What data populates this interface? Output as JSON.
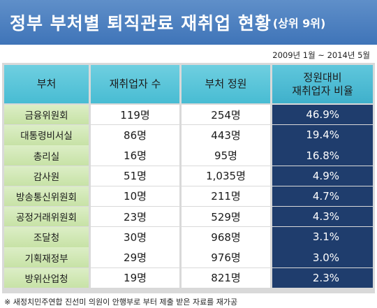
{
  "title": {
    "main": "정부 부처별 퇴직관료 재취업 현황",
    "sub": "(상위 9위)"
  },
  "period": "2009년 1월 ~ 2014년 5월",
  "headers": [
    "부처",
    "재취업자 수",
    "부처 정원",
    "정원대비\n재취업자 비율"
  ],
  "rows": [
    [
      "금융위원회",
      "119명",
      "254명",
      "46.9%"
    ],
    [
      "대통령비서실",
      "86명",
      "443명",
      "19.4%"
    ],
    [
      "총리실",
      "16명",
      "95명",
      "16.8%"
    ],
    [
      "감사원",
      "51명",
      "1,035명",
      "4.9%"
    ],
    [
      "방송통신위원회",
      "10명",
      "211명",
      "4.7%"
    ],
    [
      "공정거래위원회",
      "23명",
      "529명",
      "4.3%"
    ],
    [
      "조달청",
      "30명",
      "968명",
      "3.1%"
    ],
    [
      "기획재정부",
      "29명",
      "976명",
      "3.0%"
    ],
    [
      "방위산업청",
      "19명",
      "821명",
      "2.3%"
    ]
  ],
  "footnote": "※ 새정치민주연합 진선미 의원이 안행부로 부터 제출 받은 자료를 재가공",
  "colors": {
    "title_bar": "#4a7fc0",
    "header": "#55c3d8",
    "dept_column": "#d2e8b6",
    "rate_column": "#1f3d6d"
  },
  "chart_data": {
    "type": "table",
    "columns": [
      "부처",
      "재취업자 수",
      "부처 정원",
      "정원대비 재취업자 비율"
    ],
    "categories": [
      "금융위원회",
      "대통령비서실",
      "총리실",
      "감사원",
      "방송통신위원회",
      "공정거래위원회",
      "조달청",
      "기획재정부",
      "방위산업청"
    ],
    "series": [
      {
        "name": "재취업자 수",
        "values": [
          119,
          86,
          16,
          51,
          10,
          23,
          30,
          29,
          19
        ]
      },
      {
        "name": "부처 정원",
        "values": [
          254,
          443,
          95,
          1035,
          211,
          529,
          968,
          976,
          821
        ]
      },
      {
        "name": "정원대비 재취업자 비율",
        "values": [
          46.9,
          19.4,
          16.8,
          4.9,
          4.7,
          4.3,
          3.1,
          3.0,
          2.3
        ]
      }
    ]
  }
}
